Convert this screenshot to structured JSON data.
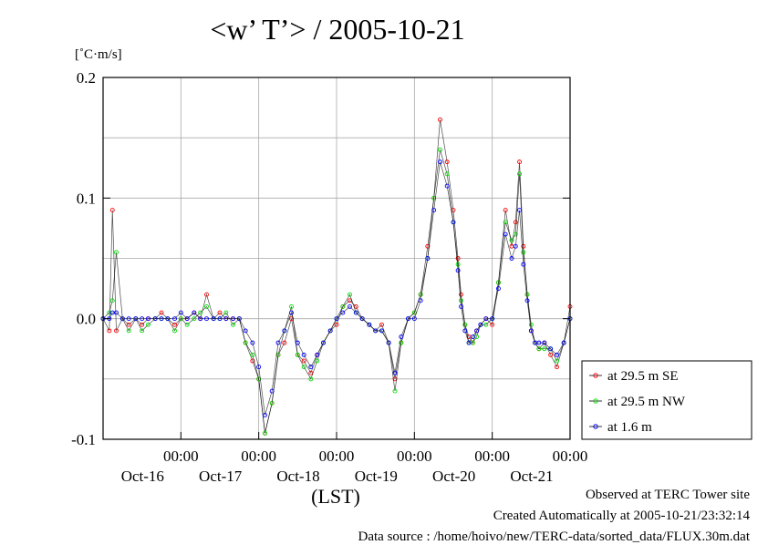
{
  "title": "<w’ T’> / 2005-10-21",
  "unit_label": "[˚C·m/s]",
  "footer": {
    "line1": "Observed at TERC Tower site",
    "line2": "Created Automatically at 2005-10-21/23:32:14",
    "line3": "Data source : /home/hoivo/new/TERC-data/sorted_data/FLUX.30m.dat"
  },
  "chart_data": {
    "type": "line",
    "title": "<w’ T’> / 2005-10-21",
    "xlabel": "(LST)",
    "ylabel": "[˚C·m/s]",
    "ylim": [
      -0.1,
      0.2
    ],
    "yticks": [
      {
        "value": 0.2,
        "label": "0.2"
      },
      {
        "value": 0.1,
        "label": "0.1"
      },
      {
        "value": 0.0,
        "label": "0.0"
      },
      {
        "value": -0.1,
        "label": "-0.1"
      }
    ],
    "xlim_days": [
      15.0,
      21.0
    ],
    "xticks": [
      {
        "day": 16,
        "time_label": "00:00",
        "date_label": "Oct-16"
      },
      {
        "day": 17,
        "time_label": "00:00",
        "date_label": "Oct-17"
      },
      {
        "day": 18,
        "time_label": "00:00",
        "date_label": "Oct-18"
      },
      {
        "day": 19,
        "time_label": "00:00",
        "date_label": "Oct-19"
      },
      {
        "day": 20,
        "time_label": "00:00",
        "date_label": "Oct-20"
      },
      {
        "day": 21,
        "time_label": "00:00",
        "date_label": "Oct-21"
      }
    ],
    "grid": true,
    "legend_position": "right",
    "series": [
      {
        "name": "at 29.5 m SE",
        "color": "#ff0000",
        "offset_key": 0
      },
      {
        "name": "at 29.5 m NW",
        "color": "#00dd00",
        "offset_key": 1
      },
      {
        "name": "at 1.6 m",
        "color": "#0000ff",
        "offset_key": 2
      }
    ],
    "x": [
      15.0,
      15.08,
      15.12,
      15.17,
      15.25,
      15.33,
      15.42,
      15.5,
      15.58,
      15.67,
      15.75,
      15.83,
      15.92,
      16.0,
      16.08,
      16.17,
      16.25,
      16.33,
      16.42,
      16.5,
      16.58,
      16.67,
      16.75,
      16.83,
      16.92,
      17.0,
      17.08,
      17.17,
      17.25,
      17.33,
      17.42,
      17.5,
      17.58,
      17.67,
      17.75,
      17.83,
      17.92,
      18.0,
      18.08,
      18.17,
      18.25,
      18.33,
      18.42,
      18.5,
      18.58,
      18.67,
      18.75,
      18.83,
      18.92,
      19.0,
      19.08,
      19.17,
      19.25,
      19.33,
      19.42,
      19.5,
      19.56,
      19.6,
      19.65,
      19.7,
      19.75,
      19.8,
      19.85,
      19.92,
      20.0,
      20.08,
      20.17,
      20.25,
      20.3,
      20.35,
      20.4,
      20.45,
      20.5,
      20.55,
      20.6,
      20.67,
      20.75,
      20.83,
      20.92,
      21.0
    ],
    "values_se": [
      0.0,
      -0.01,
      0.09,
      -0.01,
      0.0,
      -0.005,
      0.0,
      -0.005,
      0.0,
      0.0,
      0.005,
      0.0,
      -0.005,
      0.0,
      0.0,
      0.005,
      0.0,
      0.02,
      0.0,
      0.005,
      0.0,
      0.0,
      0.0,
      -0.02,
      -0.035,
      -0.05,
      -0.095,
      -0.07,
      -0.03,
      -0.02,
      0.0,
      -0.03,
      -0.035,
      -0.045,
      -0.03,
      -0.02,
      -0.01,
      -0.005,
      0.01,
      0.015,
      0.01,
      0.0,
      -0.005,
      -0.01,
      -0.005,
      -0.02,
      -0.05,
      -0.02,
      0.0,
      0.005,
      0.02,
      0.06,
      0.1,
      0.165,
      0.13,
      0.09,
      0.05,
      0.02,
      -0.005,
      -0.015,
      -0.02,
      -0.01,
      -0.005,
      0.0,
      -0.005,
      0.03,
      0.09,
      0.06,
      0.08,
      0.13,
      0.06,
      0.02,
      -0.01,
      -0.02,
      -0.025,
      -0.02,
      -0.03,
      -0.04,
      -0.02,
      0.01
    ],
    "values_nw": [
      0.0,
      0.005,
      0.015,
      0.055,
      0.0,
      -0.01,
      0.0,
      -0.01,
      -0.005,
      0.0,
      0.0,
      0.0,
      -0.01,
      0.0,
      -0.005,
      0.0,
      0.005,
      0.01,
      0.0,
      0.0,
      0.005,
      -0.005,
      0.0,
      -0.02,
      -0.03,
      -0.05,
      -0.095,
      -0.07,
      -0.03,
      -0.01,
      0.01,
      -0.03,
      -0.04,
      -0.05,
      -0.035,
      -0.02,
      -0.01,
      0.0,
      0.01,
      0.02,
      0.005,
      0.0,
      -0.005,
      -0.01,
      -0.01,
      -0.02,
      -0.06,
      -0.02,
      0.0,
      0.005,
      0.02,
      0.05,
      0.1,
      0.14,
      0.12,
      0.08,
      0.045,
      0.015,
      -0.005,
      -0.02,
      -0.02,
      -0.015,
      -0.005,
      -0.005,
      0.0,
      0.03,
      0.08,
      0.065,
      0.07,
      0.12,
      0.055,
      0.02,
      -0.005,
      -0.02,
      -0.025,
      -0.025,
      -0.025,
      -0.035,
      -0.02,
      0.0
    ],
    "values_16": [
      0.0,
      0.0,
      0.005,
      0.005,
      0.0,
      0.0,
      0.0,
      0.0,
      0.0,
      0.0,
      0.0,
      0.0,
      0.0,
      0.005,
      0.0,
      0.005,
      0.0,
      0.0,
      0.0,
      0.0,
      0.0,
      0.0,
      0.0,
      -0.01,
      -0.02,
      -0.04,
      -0.08,
      -0.06,
      -0.02,
      -0.01,
      0.005,
      -0.02,
      -0.03,
      -0.04,
      -0.03,
      -0.02,
      -0.01,
      0.0,
      0.005,
      0.01,
      0.005,
      0.0,
      -0.005,
      -0.01,
      -0.01,
      -0.02,
      -0.045,
      -0.015,
      0.0,
      0.0,
      0.015,
      0.05,
      0.09,
      0.13,
      0.11,
      0.08,
      0.04,
      0.01,
      -0.01,
      -0.02,
      -0.015,
      -0.01,
      -0.005,
      0.0,
      0.0,
      0.025,
      0.07,
      0.05,
      0.06,
      0.09,
      0.045,
      0.015,
      -0.01,
      -0.02,
      -0.02,
      -0.02,
      -0.025,
      -0.03,
      -0.02,
      0.0
    ]
  }
}
